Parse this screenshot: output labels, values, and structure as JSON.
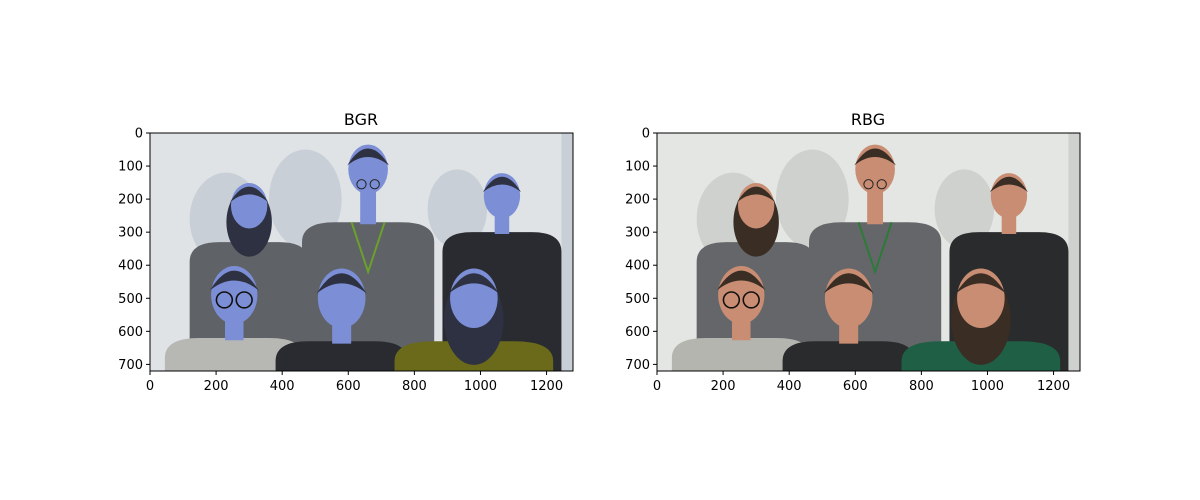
{
  "panels": [
    {
      "title": "BGR",
      "x_ticks": [
        "0",
        "200",
        "400",
        "600",
        "800",
        "1000",
        "1200"
      ],
      "y_ticks": [
        "0",
        "100",
        "200",
        "300",
        "400",
        "500",
        "600",
        "700"
      ],
      "palette": {
        "wall": "#dfe3e6",
        "shadow": "#c9cfd6",
        "skin": "#7c8fd6",
        "hair": "#2e3141",
        "shirt_gray": "#5f6267",
        "shirt_black": "#2a2b31",
        "shirt_light": "#b7b7b4",
        "shirt_bottom_right": "#6a6a1a",
        "lanyard": "#6aa12b"
      }
    },
    {
      "title": "RBG",
      "x_ticks": [
        "0",
        "200",
        "400",
        "600",
        "800",
        "1000",
        "1200"
      ],
      "y_ticks": [
        "0",
        "100",
        "200",
        "300",
        "400",
        "500",
        "600",
        "700"
      ],
      "palette": {
        "wall": "#e4e6e3",
        "shadow": "#cfd1cf",
        "skin": "#c98d73",
        "hair": "#3a2d24",
        "shirt_gray": "#64666a",
        "shirt_black": "#2a2b2d",
        "shirt_light": "#b5b5b0",
        "shirt_bottom_right": "#1e5f45",
        "lanyard": "#2d7a38"
      }
    }
  ]
}
